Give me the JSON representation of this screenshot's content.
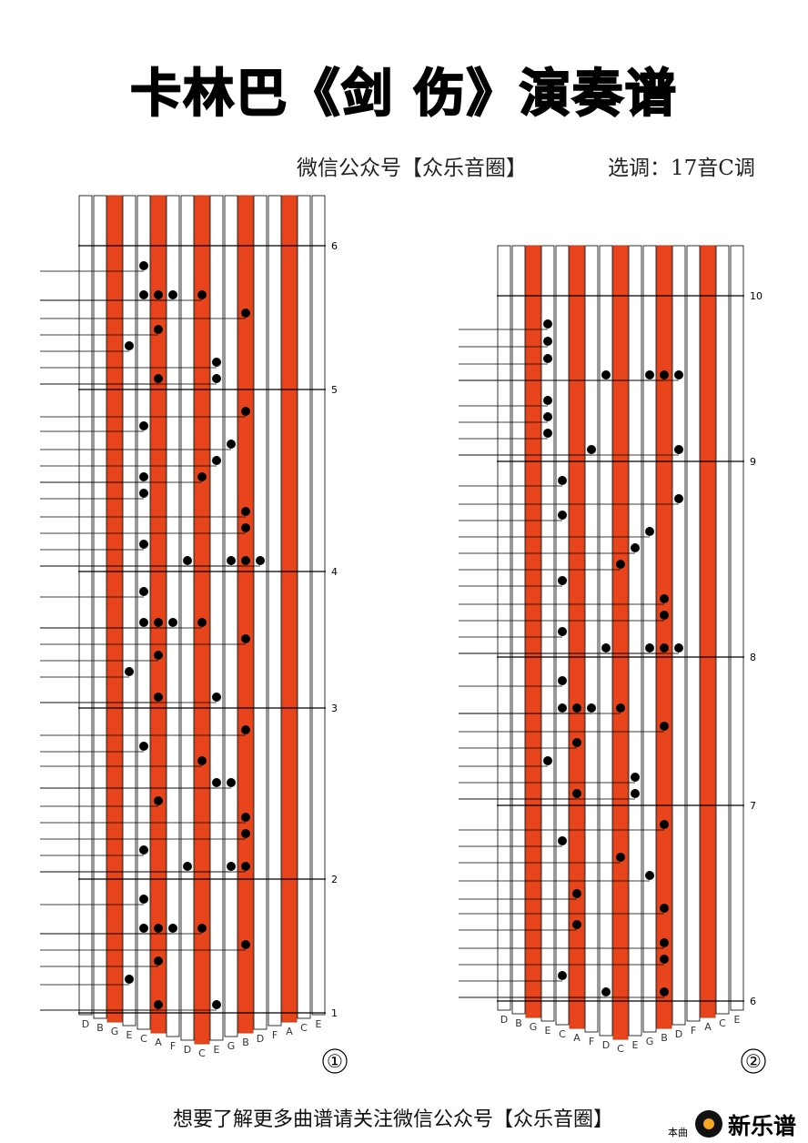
{
  "title": "卡林巴《剑 伤》演奏谱",
  "subtitle": {
    "source": "微信公众号【众乐音圈】",
    "key": "选调：17音C调"
  },
  "panels": [
    {
      "marker": "①",
      "keys": [
        "D",
        "B",
        "G",
        "E",
        "C",
        "A",
        "F",
        "D",
        "C",
        "E",
        "G",
        "B",
        "D",
        "F",
        "A",
        "C",
        "E"
      ],
      "measures": [
        "6",
        "5",
        "4",
        "3",
        "2",
        "1"
      ]
    },
    {
      "marker": "②",
      "keys": [
        "D",
        "B",
        "G",
        "E",
        "C",
        "A",
        "F",
        "D",
        "C",
        "E",
        "G",
        "B",
        "D",
        "F",
        "A",
        "C",
        "E"
      ],
      "measures": [
        "10",
        "9",
        "8",
        "7",
        "6"
      ]
    }
  ],
  "footer": {
    "text": "想要了解更多曲谱请关注微信公众号【众乐音圈】",
    "brand_small": "本曲",
    "brand": "新乐谱"
  }
}
